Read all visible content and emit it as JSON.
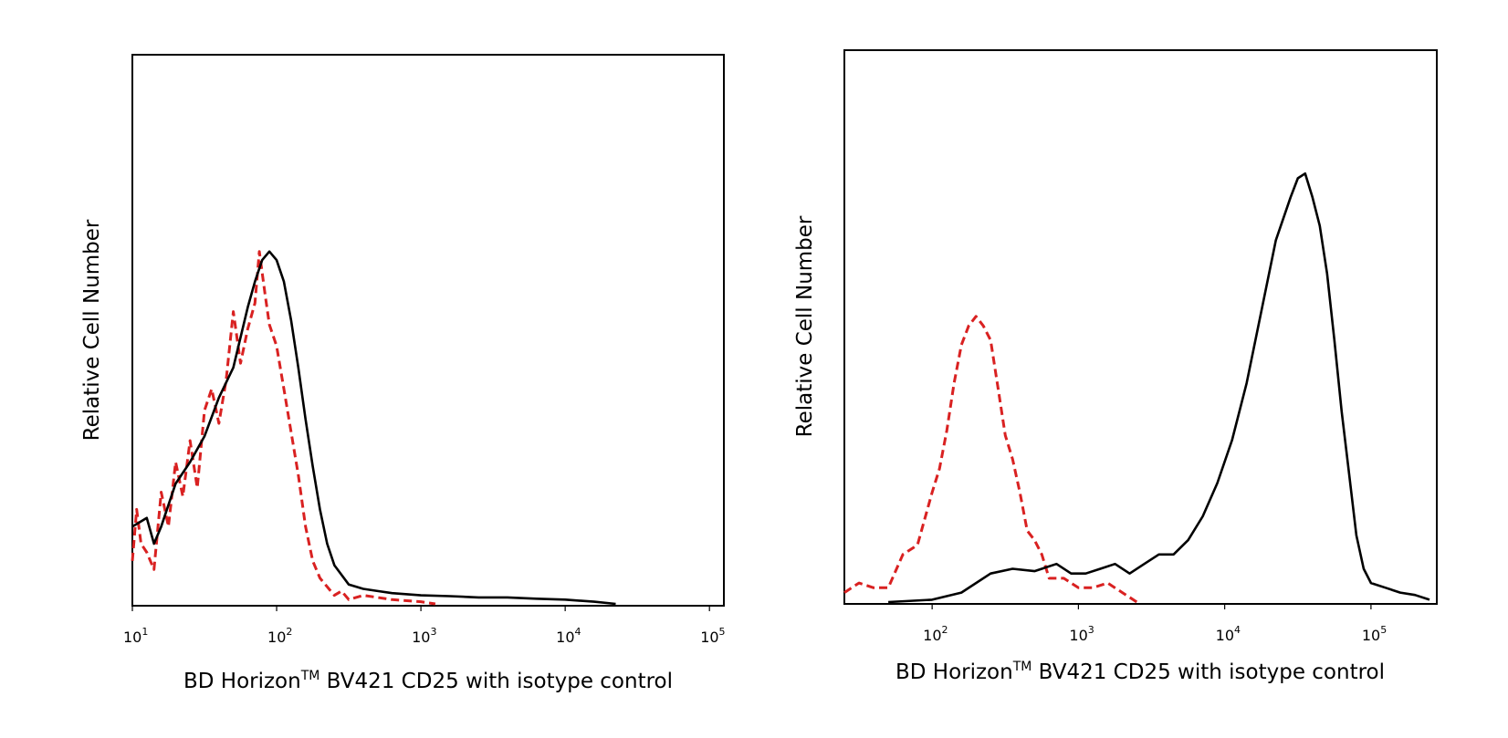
{
  "colors": {
    "sample": "#000000",
    "isotype": "#d92121",
    "background": "#ffffff"
  },
  "chart_data": [
    {
      "type": "line",
      "panel": "left",
      "title": "",
      "xlabel": "BD Horizon",
      "xlabel_superscript": "TM",
      "xlabel_rest": " BV421 CD25 with isotype control",
      "ylabel": "Relative Cell Number",
      "xscale": "log",
      "xlim_log10": [
        1.0,
        5.1
      ],
      "ylim": [
        0,
        100
      ],
      "grid": false,
      "ticks": [
        {
          "base": "10",
          "exp": "1",
          "log10": 1
        },
        {
          "base": "10",
          "exp": "2",
          "log10": 2
        },
        {
          "base": "10",
          "exp": "3",
          "log10": 3
        },
        {
          "base": "10",
          "exp": "4",
          "log10": 4
        },
        {
          "base": "10",
          "exp": "5",
          "log10": 5
        }
      ],
      "series": [
        {
          "name": "CD25",
          "style": "solid",
          "x_log10": [
            1.0,
            1.05,
            1.1,
            1.15,
            1.2,
            1.3,
            1.4,
            1.5,
            1.6,
            1.7,
            1.8,
            1.85,
            1.9,
            1.95,
            2.0,
            2.05,
            2.1,
            2.15,
            2.2,
            2.25,
            2.3,
            2.35,
            2.4,
            2.5,
            2.6,
            2.7,
            2.8,
            3.0,
            3.2,
            3.4,
            3.6,
            3.8,
            4.0,
            4.2,
            4.35
          ],
          "y": [
            18,
            19,
            20,
            14,
            18,
            28,
            33,
            39,
            48,
            55,
            69,
            75,
            80,
            82,
            80,
            75,
            66,
            55,
            43,
            32,
            22,
            14,
            9,
            4.5,
            3.5,
            3,
            2.5,
            2,
            1.8,
            1.5,
            1.5,
            1.2,
            1,
            0.5,
            0
          ]
        },
        {
          "name": "Isotype control",
          "style": "dashed",
          "x_log10": [
            1.0,
            1.03,
            1.06,
            1.1,
            1.15,
            1.2,
            1.25,
            1.3,
            1.35,
            1.4,
            1.45,
            1.5,
            1.55,
            1.6,
            1.65,
            1.7,
            1.75,
            1.8,
            1.85,
            1.88,
            1.92,
            1.95,
            2.0,
            2.05,
            2.1,
            2.15,
            2.2,
            2.25,
            2.3,
            2.35,
            2.4,
            2.45,
            2.5,
            2.6,
            2.8,
            3.0,
            3.1
          ],
          "y": [
            10,
            22,
            14,
            12,
            8,
            26,
            18,
            33,
            25,
            38,
            27,
            45,
            50,
            42,
            52,
            68,
            56,
            64,
            70,
            82,
            72,
            65,
            60,
            50,
            40,
            30,
            18,
            10,
            6,
            4,
            2,
            3,
            1,
            2,
            1,
            0.5,
            0
          ]
        }
      ]
    },
    {
      "type": "line",
      "panel": "right",
      "title": "",
      "xlabel": "BD Horizon",
      "xlabel_superscript": "TM",
      "xlabel_rest": " BV421 CD25 with isotype control",
      "ylabel": "Relative Cell Number",
      "xscale": "log",
      "xlim_log10": [
        1.4,
        5.45
      ],
      "ylim": [
        0,
        100
      ],
      "grid": false,
      "ticks": [
        {
          "base": "10",
          "exp": "2",
          "log10": 2
        },
        {
          "base": "10",
          "exp": "3",
          "log10": 3
        },
        {
          "base": "10",
          "exp": "4",
          "log10": 4
        },
        {
          "base": "10",
          "exp": "5",
          "log10": 5
        }
      ],
      "series": [
        {
          "name": "CD25",
          "style": "solid",
          "x_log10": [
            1.7,
            2.0,
            2.2,
            2.4,
            2.55,
            2.7,
            2.85,
            2.95,
            3.05,
            3.15,
            3.25,
            3.35,
            3.45,
            3.55,
            3.65,
            3.75,
            3.85,
            3.95,
            4.05,
            4.15,
            4.25,
            4.35,
            4.45,
            4.5,
            4.55,
            4.6,
            4.65,
            4.7,
            4.75,
            4.8,
            4.85,
            4.9,
            4.95,
            5.0,
            5.1,
            5.2,
            5.3,
            5.4
          ],
          "y": [
            0,
            0.5,
            2,
            6,
            7,
            6.5,
            8,
            6,
            6,
            7,
            8,
            6,
            8,
            10,
            10,
            13,
            18,
            25,
            34,
            46,
            61,
            76,
            85,
            89,
            90,
            85,
            79,
            69,
            55,
            40,
            27,
            14,
            7,
            4,
            3,
            2,
            1.5,
            0.5
          ]
        },
        {
          "name": "Isotype control",
          "style": "dashed",
          "x_log10": [
            1.4,
            1.5,
            1.6,
            1.7,
            1.8,
            1.9,
            2.0,
            2.05,
            2.1,
            2.15,
            2.2,
            2.25,
            2.3,
            2.35,
            2.4,
            2.45,
            2.5,
            2.55,
            2.6,
            2.65,
            2.7,
            2.75,
            2.8,
            2.9,
            3.0,
            3.1,
            3.2,
            3.3,
            3.4
          ],
          "y": [
            2,
            4,
            3,
            3,
            10,
            12,
            23,
            28,
            36,
            46,
            54,
            58,
            60,
            58,
            55,
            45,
            35,
            30,
            23,
            15,
            13,
            10,
            5,
            5,
            3,
            3,
            4,
            2,
            0
          ]
        }
      ]
    }
  ]
}
